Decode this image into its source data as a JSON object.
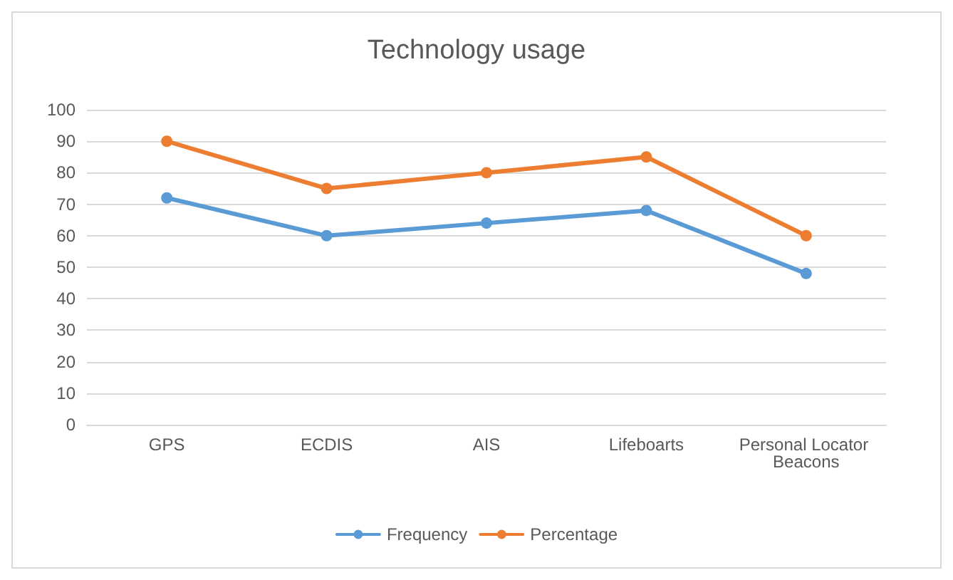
{
  "chart_data": {
    "type": "line",
    "title": "Technology usage",
    "categories": [
      "GPS",
      "ECDIS",
      "AIS",
      "Lifeboarts",
      "Personal Locator Beacons"
    ],
    "series": [
      {
        "name": "Frequency",
        "color": "#5b9bd5",
        "values": [
          72,
          60,
          64,
          68,
          48
        ]
      },
      {
        "name": "Percentage",
        "color": "#ed7d31",
        "values": [
          90,
          75,
          80,
          85,
          60
        ]
      }
    ],
    "ylim": [
      0,
      100
    ],
    "yticks": [
      0,
      10,
      20,
      30,
      40,
      50,
      60,
      70,
      80,
      90,
      100
    ],
    "grid": "y",
    "legend": "bottom",
    "marker": "circle",
    "line_style": "solid"
  }
}
